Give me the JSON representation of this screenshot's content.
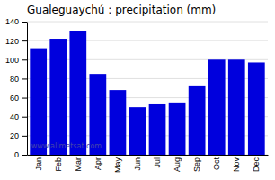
{
  "chart_data": {
    "type": "bar",
    "title": "Gualeguaychú : precipitation (mm)",
    "categories": [
      "Jan",
      "Feb",
      "Mar",
      "Apr",
      "May",
      "Jun",
      "Jul",
      "Aug",
      "Sep",
      "Oct",
      "Nov",
      "Dec"
    ],
    "values": [
      112,
      122,
      130,
      85,
      68,
      50,
      53,
      55,
      72,
      100,
      100,
      97
    ],
    "color": "#0000dd",
    "ylim": [
      0,
      140
    ],
    "yticks": [
      0,
      20,
      40,
      60,
      80,
      100,
      120,
      140
    ],
    "grid": true,
    "annotations": [
      "www.allmetsat.com"
    ]
  }
}
